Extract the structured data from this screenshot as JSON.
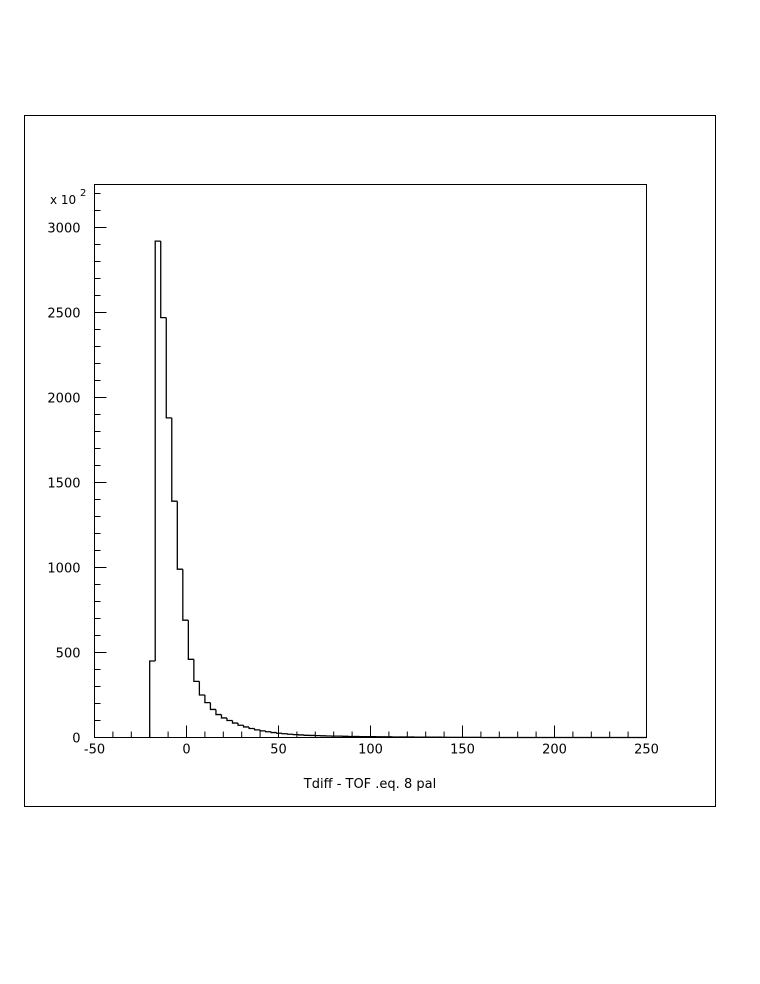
{
  "chart_data": {
    "type": "histogram",
    "x_label": "Tdiff - TOF .eq. 8 pal",
    "y_scale_label": "x 10",
    "y_scale_exponent": "2",
    "bins": [
      -20,
      -17,
      -14,
      -11,
      -8,
      -5,
      -2,
      1,
      4,
      7,
      10,
      13,
      16,
      19,
      22,
      25,
      28,
      31,
      34,
      37,
      40,
      43,
      46,
      49,
      52,
      55,
      58,
      61,
      64,
      67,
      70,
      73,
      76,
      79,
      82,
      85,
      88,
      91,
      94,
      97,
      100,
      103,
      106,
      109,
      112,
      115,
      118,
      121,
      124,
      127,
      130,
      133,
      136,
      139,
      142,
      145,
      148,
      151,
      154,
      157,
      160,
      163,
      166,
      169,
      172,
      175,
      178,
      181,
      184,
      187,
      190,
      193,
      196,
      199,
      202,
      205,
      208,
      211,
      214,
      217,
      220,
      223,
      226,
      229,
      232,
      235,
      238,
      241,
      244,
      247,
      250
    ],
    "values": [
      450,
      2920,
      2470,
      1880,
      1390,
      990,
      690,
      460,
      330,
      250,
      205,
      165,
      135,
      115,
      100,
      85,
      72,
      62,
      53,
      45,
      39,
      34,
      29,
      25,
      22,
      19,
      17,
      15,
      13,
      12,
      11,
      10,
      9,
      8,
      8,
      7,
      6,
      6,
      5,
      5,
      5,
      4,
      4,
      4,
      3,
      3,
      3,
      3,
      2,
      2,
      2,
      2,
      2,
      1,
      1,
      1,
      1,
      1,
      1,
      1,
      0,
      0,
      0,
      0,
      0,
      0,
      0,
      0,
      0,
      0,
      0,
      0,
      0,
      0,
      0,
      0,
      0,
      0,
      0,
      0,
      0,
      0,
      0,
      0,
      0,
      0,
      0,
      0,
      0,
      0
    ],
    "color": "#000000",
    "xlim": [
      -50,
      250
    ],
    "ylim": [
      0,
      3253
    ],
    "xticks": [
      -50,
      0,
      50,
      100,
      150,
      200,
      250
    ],
    "yticks": [
      0,
      500,
      1000,
      1500,
      2000,
      2500,
      3000
    ],
    "xminorticks": [
      -40,
      -30,
      -20,
      -10,
      10,
      20,
      30,
      40,
      60,
      70,
      80,
      90,
      110,
      120,
      130,
      140,
      160,
      170,
      180,
      190,
      210,
      220,
      230,
      240
    ],
    "yminorticks": [
      100,
      200,
      300,
      400,
      600,
      700,
      800,
      900,
      1100,
      1200,
      1300,
      1400,
      1600,
      1700,
      1800,
      1900,
      2100,
      2200,
      2300,
      2400,
      2600,
      2700,
      2800,
      2900,
      3100,
      3200
    ]
  }
}
